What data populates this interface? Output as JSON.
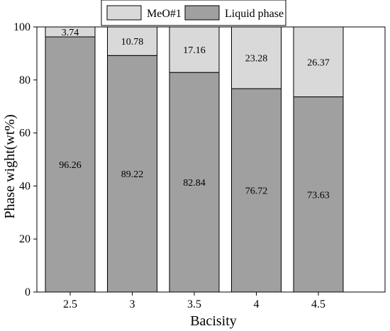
{
  "chart_data": {
    "type": "bar",
    "stacked": true,
    "title": "",
    "xlabel": "Bacisity",
    "ylabel": "Phase wight(wt%)",
    "categories": [
      "2.5",
      "3",
      "3.5",
      "4",
      "4.5"
    ],
    "ylim": [
      0,
      100
    ],
    "yticks": [
      "0",
      "20",
      "40",
      "60",
      "80",
      "100"
    ],
    "grid": false,
    "legend_position": "top-center",
    "series": [
      {
        "name": "Liquid phase",
        "values": [
          96.26,
          89.22,
          82.84,
          76.72,
          73.63
        ],
        "labels": [
          "96.26",
          "89.22",
          "82.84",
          "76.72",
          "73.63"
        ],
        "color": "#a0a0a0"
      },
      {
        "name": "MeO#1",
        "values": [
          3.74,
          10.78,
          17.16,
          23.28,
          26.37
        ],
        "labels": [
          "3.74",
          "10.78",
          "17.16",
          "23.28",
          "26.37"
        ],
        "color": "#d9d9d9"
      }
    ]
  }
}
